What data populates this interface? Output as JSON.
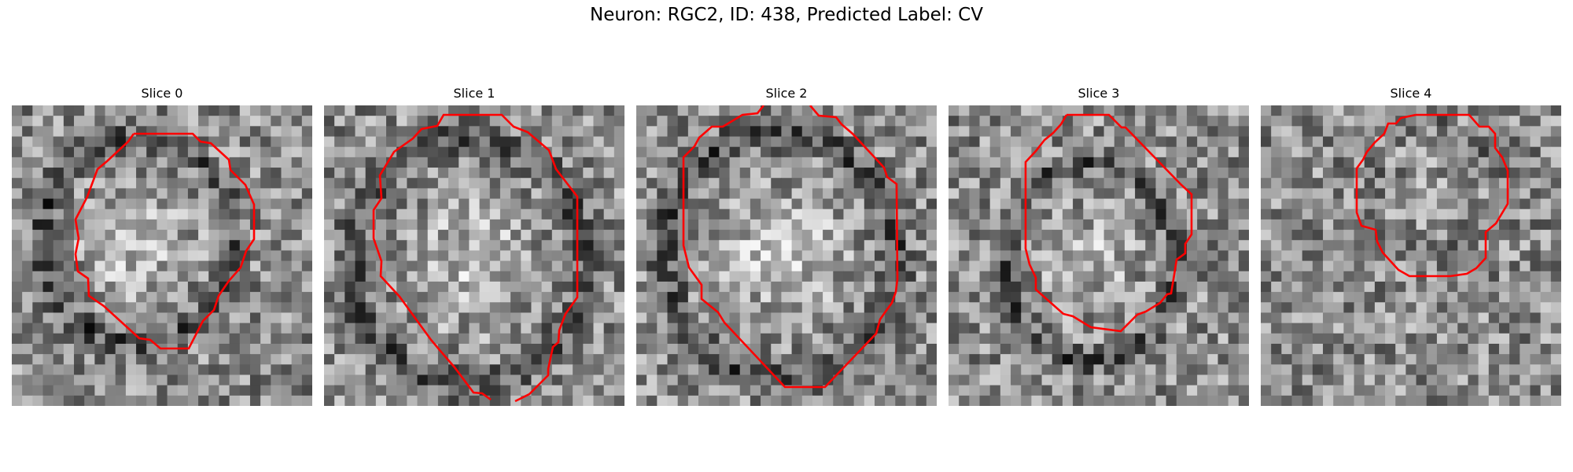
{
  "figure": {
    "title": "Neuron: RGC2, ID: 438, Predicted Label: CV"
  },
  "panels": [
    {
      "title": "Slice 0"
    },
    {
      "title": "Slice 1"
    },
    {
      "title": "Slice 2"
    },
    {
      "title": "Slice 3"
    },
    {
      "title": "Slice 4"
    }
  ],
  "colors": {
    "contour": "#ff0000",
    "background": "#ffffff",
    "image_colormap": "grayscale"
  }
}
